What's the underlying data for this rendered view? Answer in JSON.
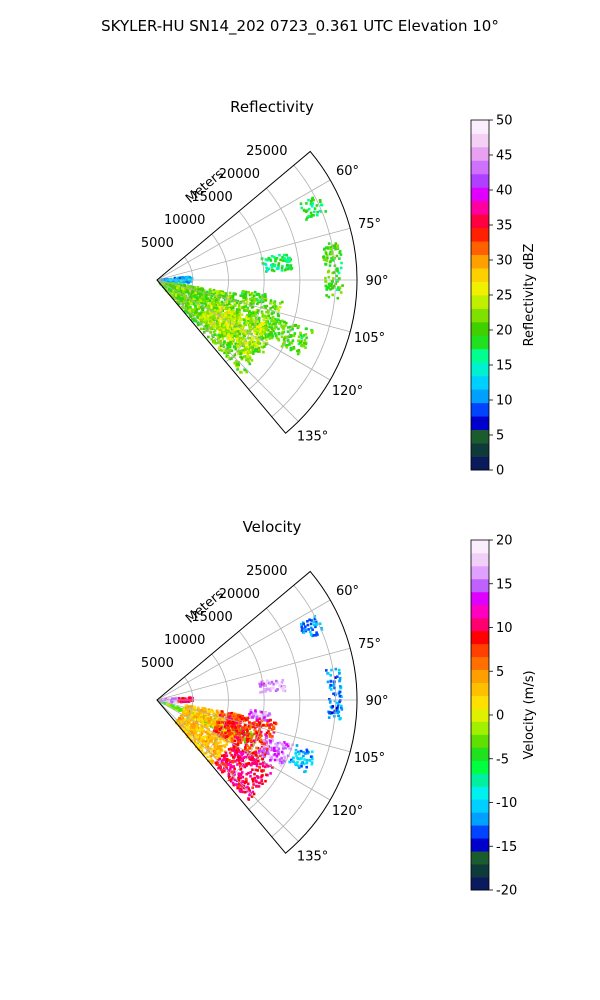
{
  "figure_title": "SKYLER-HU  SN14_202  0723_0.361 UTC Elevation 10°",
  "chart_data": [
    {
      "type": "heatmap",
      "projection": "polar-sector",
      "title": "Reflectivity",
      "radial_label": "Meters",
      "radial_ticks": [
        5000,
        10000,
        15000,
        20000,
        25000
      ],
      "radial_max": 28000,
      "azimuth_range": [
        50,
        140
      ],
      "azimuth_ticks": [
        "60°",
        "75°",
        "90°",
        "105°",
        "120°",
        "135°"
      ],
      "azimuth_tick_values": [
        60,
        75,
        90,
        105,
        120,
        135
      ],
      "grid": true,
      "colorbar": {
        "label": "Reflectivity dBZ",
        "min": 0,
        "max": 50,
        "ticks": [
          0,
          5,
          10,
          15,
          20,
          25,
          30,
          35,
          40,
          45,
          50
        ],
        "colors": [
          "#0a1a5c",
          "#0f3a3a",
          "#1a5c2e",
          "#0000cc",
          "#0044ff",
          "#00a0ff",
          "#00d0ff",
          "#00f0d0",
          "#00ff90",
          "#20e020",
          "#40d000",
          "#80e000",
          "#c0f000",
          "#f0f000",
          "#ffd000",
          "#ffa000",
          "#ff6000",
          "#ff2000",
          "#ff0040",
          "#ff00a0",
          "#e000ff",
          "#b040ff",
          "#d070ff",
          "#e8a0f0",
          "#f4d0f4",
          "#fbeefc"
        ]
      },
      "echo_regions": [
        {
          "az_min": 100,
          "az_max": 138,
          "r_min": 500,
          "r_max": 18000,
          "value": 21
        },
        {
          "az_min": 112,
          "az_max": 130,
          "r_min": 8000,
          "r_max": 17000,
          "value": 24
        },
        {
          "az_min": 108,
          "az_max": 118,
          "r_min": 17000,
          "r_max": 23000,
          "value": 20
        },
        {
          "az_min": 62,
          "az_max": 68,
          "r_min": 22500,
          "r_max": 25500,
          "value": 18
        },
        {
          "az_min": 78,
          "az_max": 96,
          "r_min": 23500,
          "r_max": 26000,
          "value": 20
        },
        {
          "az_min": 84,
          "az_max": 96,
          "r_min": 500,
          "r_max": 5000,
          "value": 12
        },
        {
          "az_min": 97,
          "az_max": 102,
          "r_min": 12000,
          "r_max": 15500,
          "value": 19
        },
        {
          "az_min": 78,
          "az_max": 86,
          "r_min": 15000,
          "r_max": 19000,
          "value": 17
        }
      ]
    },
    {
      "type": "heatmap",
      "projection": "polar-sector",
      "title": "Velocity",
      "radial_label": "Meters",
      "radial_ticks": [
        5000,
        10000,
        15000,
        20000,
        25000
      ],
      "radial_max": 28000,
      "azimuth_range": [
        50,
        140
      ],
      "azimuth_ticks": [
        "60°",
        "75°",
        "90°",
        "105°",
        "120°",
        "135°"
      ],
      "azimuth_tick_values": [
        60,
        75,
        90,
        105,
        120,
        135
      ],
      "grid": true,
      "colorbar": {
        "label": "Velocity (m/s)",
        "min": -20,
        "max": 20,
        "ticks": [
          -20,
          -15,
          -10,
          -5,
          0,
          5,
          10,
          15,
          20
        ],
        "colors": [
          "#0a1a5c",
          "#0f3a3a",
          "#1a5c2e",
          "#0000cc",
          "#0044ff",
          "#00a0ff",
          "#00d0ff",
          "#00f0f0",
          "#00f0a0",
          "#00ff40",
          "#20e020",
          "#60e000",
          "#a0f000",
          "#e0f000",
          "#ffe000",
          "#ffc000",
          "#ffa000",
          "#ff7000",
          "#ff4000",
          "#ff0000",
          "#ff0070",
          "#ff00c0",
          "#e000ff",
          "#c060ff",
          "#e0a0ff",
          "#f0d0f8",
          "#fbeefc"
        ]
      },
      "echo_regions": [
        {
          "az_min": 108,
          "az_max": 116,
          "r_min": 500,
          "r_max": 15000,
          "value": -3
        },
        {
          "az_min": 100,
          "az_max": 140,
          "r_min": 4000,
          "r_max": 12000,
          "value": 3
        },
        {
          "az_min": 100,
          "az_max": 120,
          "r_min": 9000,
          "r_max": 17000,
          "value": 8
        },
        {
          "az_min": 120,
          "az_max": 138,
          "r_min": 12000,
          "r_max": 19000,
          "value": 10
        },
        {
          "az_min": 108,
          "az_max": 118,
          "r_min": 16000,
          "r_max": 20000,
          "value": 15
        },
        {
          "az_min": 108,
          "az_max": 116,
          "r_min": 20500,
          "r_max": 23500,
          "value": -11
        },
        {
          "az_min": 62,
          "az_max": 68,
          "r_min": 22500,
          "r_max": 25500,
          "value": -12
        },
        {
          "az_min": 80,
          "az_max": 96,
          "r_min": 24000,
          "r_max": 26000,
          "value": -12
        },
        {
          "az_min": 84,
          "az_max": 98,
          "r_min": 500,
          "r_max": 3000,
          "value": 16
        },
        {
          "az_min": 85,
          "az_max": 95,
          "r_min": 3000,
          "r_max": 5000,
          "value": 10
        },
        {
          "az_min": 96,
          "az_max": 101,
          "r_min": 13000,
          "r_max": 16000,
          "value": 15
        },
        {
          "az_min": 80,
          "az_max": 86,
          "r_min": 14500,
          "r_max": 18000,
          "value": 16
        }
      ]
    }
  ]
}
